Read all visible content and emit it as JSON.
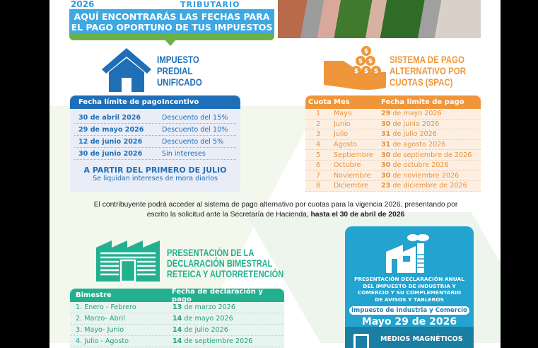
{
  "header": {
    "year": "2026",
    "subtitle": "TRIBUTARIO",
    "banner_line1": "AQUÍ ENCONTRARÁS LAS FECHAS PARA",
    "banner_line2": "EL PAGO OPORTUNO DE TUS IMPUESTOS"
  },
  "predial": {
    "title": [
      "IMPUESTO",
      "PREDIAL",
      "UNIFICADO"
    ],
    "headers": [
      "Fecha límite de pago",
      "Incentivo"
    ],
    "rows": [
      [
        "30 de abril 2026",
        "Descuento del 15%"
      ],
      [
        "29 de mayo 2026",
        "Descuento del 10%"
      ],
      [
        "12 de junio 2026",
        "Descuento del 5%"
      ],
      [
        "30 de junio 2026",
        "Sin intereses"
      ]
    ],
    "notice": "A PARTIR DEL PRIMERO DE JULIO",
    "notice_sub": "Se liquidan intereses de mora diarios",
    "color": "#1f6fb8"
  },
  "spac": {
    "title": [
      "SISTEMA DE PAGO",
      "ALTERNATIVO POR",
      "CUOTAS (SPAC)"
    ],
    "headers": [
      "Cuota",
      "Mes",
      "Fecha limite de pago"
    ],
    "rows": [
      [
        "1",
        "Mayo",
        "29",
        " de mayo 2026"
      ],
      [
        "2",
        "Junio",
        "30",
        " de junio 2026"
      ],
      [
        "3",
        "Julio",
        "31",
        " de julio 2026"
      ],
      [
        "4",
        "Agosto",
        "31",
        " de agosto 2026"
      ],
      [
        "5",
        "Septiembre",
        "30",
        " de septiembre de 2026"
      ],
      [
        "6",
        "Octubre",
        "30",
        " de octubre 2026"
      ],
      [
        "7",
        "Noviembre",
        "30",
        " de noviembre 2026"
      ],
      [
        "8",
        "Diciembre",
        "23",
        " de diciembre de 2026"
      ]
    ],
    "color": "#f0963a"
  },
  "note": {
    "text": "El contribuyente podrá acceder al sistema de pago alternativo por cuotas para la vigencia 2026, presentando por escrito la solicitud ante la Secretaría de Hacienda, ",
    "bold": "hasta el 30 de abril de 2026"
  },
  "reteica": {
    "title": [
      "PRESENTACIÓN DE LA",
      "DECLARACIÓN BIMESTRAL",
      "RETEICA Y AUTORRETENCIÓN"
    ],
    "headers": [
      "Bimestre",
      "Fecha de declaración y pago"
    ],
    "rows": [
      [
        "1. Enero - Febrero",
        "13",
        " de marzo 2026"
      ],
      [
        "2. Marzo- Abril",
        "14",
        " de mayo 2026"
      ],
      [
        "3. Mayo- Junio",
        "14",
        " de julio 2026"
      ],
      [
        "4. Julio - Agosto",
        "14",
        " de septiembre 2026"
      ]
    ],
    "color": "#23b08e"
  },
  "ica": {
    "title": [
      "PRESENTACIÓN DECLARACIÓN ANUAL",
      "DEL IMPUESTO DE INDUSTRIA Y",
      "COMERCIO Y SU COMPLEMENTARIO",
      "DE AVISOS Y TABLEROS"
    ],
    "pill": "Impuesto de Industria y Comercio",
    "date": "Mayo 29 de 2026",
    "medios": "MEDIOS MAGNÉTICOS",
    "color": "#23a3cf"
  }
}
